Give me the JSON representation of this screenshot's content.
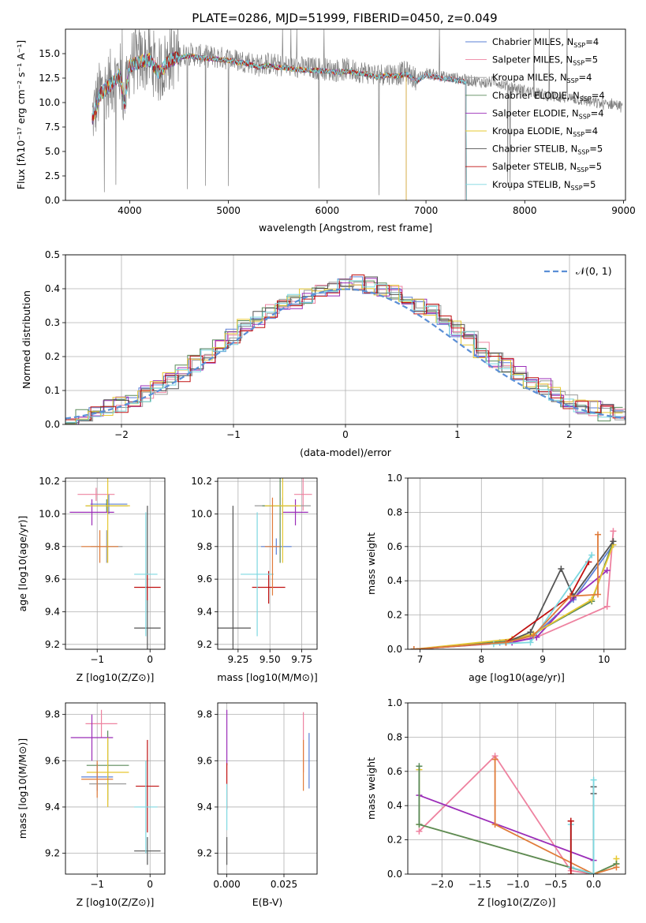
{
  "figure_title": "PLATE=0286, MJD=51999, FIBERID=0450, z=0.049",
  "colors": {
    "Chabrier MILES": "#5b7fd6",
    "Salpeter MILES": "#ee82a0",
    "Kroupa MILES": "#9a9a9a",
    "Chabrier ELODIE": "#5a8a5a",
    "Salpeter ELODIE": "#9b2db8",
    "Kroupa ELODIE": "#e6c832",
    "Chabrier STELIB": "#555555",
    "Salpeter STELIB": "#c01010",
    "Kroupa STELIB": "#7dd8e0",
    "gauss": "#5b8fd6",
    "orange": "#e07b39",
    "lime": "#c8e65a"
  },
  "chart_data": [
    {
      "id": "spectrum",
      "type": "line",
      "title": "PLATE=0286, MJD=51999, FIBERID=0450, z=0.049",
      "xlabel": "wavelength [Angstrom, rest frame]",
      "ylabel": "Flux [fλ10⁻¹⁷ erg cm⁻² s⁻¹ A⁻¹]",
      "xlim": [
        3350,
        9020
      ],
      "ylim": [
        0,
        17.5
      ],
      "xticks": [
        "4000",
        "5000",
        "6000",
        "7000",
        "8000",
        "9000"
      ],
      "yticks": [
        "0.0",
        "2.5",
        "5.0",
        "7.5",
        "10.0",
        "12.5",
        "15.0"
      ],
      "grid": false,
      "legend_position": "upper-right",
      "legend": [
        {
          "base": "Chabrier MILES, N",
          "sub": "SSP",
          "tail": "=4"
        },
        {
          "base": "Salpeter MILES, N",
          "sub": "SSP",
          "tail": "=5"
        },
        {
          "base": "Kroupa MILES, N",
          "sub": "SSP",
          "tail": "=4"
        },
        {
          "base": "Chabrier ELODIE, N",
          "sub": "SSP",
          "tail": "=4"
        },
        {
          "base": "Salpeter ELODIE, N",
          "sub": "SSP",
          "tail": "=4"
        },
        {
          "base": "Kroupa ELODIE, N",
          "sub": "SSP",
          "tail": "=4"
        },
        {
          "base": "Chabrier STELIB, N",
          "sub": "SSP",
          "tail": "=5"
        },
        {
          "base": "Salpeter STELIB, N",
          "sub": "SSP",
          "tail": "=5"
        },
        {
          "base": "Kroupa STELIB, N",
          "sub": "SSP",
          "tail": "=5"
        }
      ],
      "observed_curve": {
        "x": [
          3620,
          3700,
          3800,
          3900,
          3950,
          4000,
          4100,
          4200,
          4300,
          4400,
          4500,
          4600,
          4700,
          4800,
          4900,
          5000,
          5100,
          5200,
          5300,
          5400,
          5500,
          5600,
          5700,
          5800,
          5900,
          6000,
          6100,
          6200,
          6300,
          6400,
          6500,
          6600,
          6700,
          6800,
          6900,
          7000,
          7100,
          7200,
          7300,
          7400,
          7500,
          7600,
          7700,
          7800,
          7900,
          8000,
          8100,
          8200,
          8300,
          8400,
          8500,
          8600,
          8700,
          8800,
          8900,
          8990
        ],
        "y": [
          8.5,
          11.0,
          12.0,
          13.0,
          10.0,
          14.0,
          14.3,
          14.6,
          13.2,
          14.5,
          14.8,
          15.0,
          14.8,
          14.7,
          14.6,
          14.5,
          14.3,
          14.2,
          13.8,
          14.0,
          13.8,
          13.7,
          13.6,
          13.5,
          13.5,
          13.4,
          13.3,
          13.4,
          13.2,
          13.1,
          12.8,
          13.0,
          12.9,
          13.1,
          12.4,
          13.0,
          12.8,
          12.6,
          12.5,
          12.3,
          12.2,
          12.0,
          12.2,
          11.8,
          11.5,
          11.2,
          11.0,
          10.8,
          10.6,
          10.5,
          10.4,
          10.2,
          10.0,
          9.8,
          9.9,
          9.5
        ]
      },
      "model_cutoffs": {
        "STELIB": 7410,
        "ELODIE": 6800,
        "MILES": 7400
      }
    },
    {
      "id": "residuals",
      "type": "bar",
      "xlabel": "(data-model)/error",
      "ylabel": "Normed distribution",
      "xlim": [
        -2.5,
        2.5
      ],
      "ylim": [
        0,
        0.5
      ],
      "xticks": [
        "−2",
        "−1",
        "0",
        "1",
        "2"
      ],
      "yticks": [
        "0.0",
        "0.1",
        "0.2",
        "0.3",
        "0.4",
        "0.5"
      ],
      "grid": true,
      "legend_position": "upper-right",
      "legend_label": "𝒩(0, 1)",
      "bin_width": 0.111,
      "base_hist": [
        0.02,
        0.03,
        0.04,
        0.05,
        0.06,
        0.075,
        0.09,
        0.11,
        0.13,
        0.15,
        0.18,
        0.2,
        0.23,
        0.26,
        0.29,
        0.31,
        0.33,
        0.35,
        0.36,
        0.38,
        0.39,
        0.4,
        0.41,
        0.42,
        0.41,
        0.4,
        0.39,
        0.37,
        0.35,
        0.33,
        0.31,
        0.28,
        0.25,
        0.22,
        0.19,
        0.17,
        0.15,
        0.13,
        0.11,
        0.09,
        0.07,
        0.055,
        0.045,
        0.035,
        0.03
      ]
    },
    {
      "id": "age_vs_Z",
      "type": "scatter",
      "xlabel": "Z [log10(Z/Z⊙)]",
      "ylabel": "age  [log10(age/yr)]",
      "xlim": [
        -1.6,
        0.28
      ],
      "ylim": [
        9.17,
        10.22
      ],
      "xticks": [
        "−1",
        "0"
      ],
      "yticks": [
        "9.2",
        "9.4",
        "9.6",
        "9.8",
        "10.0",
        "10.2"
      ],
      "grid": true,
      "points": [
        {
          "model": "Chabrier MILES",
          "x": -0.78,
          "y": 10.06,
          "xerr": 0.35,
          "yerr": 0.06
        },
        {
          "model": "Salpeter MILES",
          "x": -1.02,
          "y": 10.12,
          "xerr": 0.35,
          "yerr": 0.04
        },
        {
          "model": "Kroupa MILES",
          "x": -0.82,
          "y": 9.8,
          "xerr": 0.3,
          "yerr": 0.1
        },
        {
          "model": "Chabrier ELODIE",
          "x": -0.82,
          "y": 10.05,
          "xerr": 0.4,
          "yerr": 0.04
        },
        {
          "model": "Salpeter ELODIE",
          "x": -1.1,
          "y": 10.01,
          "xerr": 0.42,
          "yerr": 0.08
        },
        {
          "model": "Kroupa ELODIE",
          "x": -0.8,
          "y": 10.05,
          "xerr": 0.42,
          "yerr": 0.35
        },
        {
          "model": "Chabrier STELIB",
          "x": -0.05,
          "y": 9.3,
          "xerr": 0.25,
          "yerr": 0.75
        },
        {
          "model": "Salpeter STELIB",
          "x": -0.05,
          "y": 9.55,
          "xerr": 0.25,
          "yerr": 0.08
        },
        {
          "model": "Kroupa STELIB",
          "x": -0.08,
          "y": 9.63,
          "xerr": 0.22,
          "yerr": 0.38
        },
        {
          "model": "orange",
          "x": -0.95,
          "y": 9.8,
          "xerr": 0.35,
          "yerr": 0.1
        }
      ]
    },
    {
      "id": "age_vs_mass",
      "type": "scatter",
      "xlabel": "mass [log10(M/M⊙)]",
      "ylabel": "",
      "xlim": [
        9.09,
        9.87
      ],
      "ylim": [
        9.17,
        10.22
      ],
      "xticks": [
        "9.25",
        "9.50",
        "9.75"
      ],
      "yticks": [
        "9.2",
        "9.4",
        "9.6",
        "9.8",
        "10.0",
        "10.2"
      ],
      "grid": true,
      "points": [
        {
          "model": "Chabrier MILES",
          "x": 9.55,
          "y": 9.8,
          "xerr": 0.12,
          "yerr": 0.05
        },
        {
          "model": "Salpeter MILES",
          "x": 9.76,
          "y": 10.12,
          "xerr": 0.07,
          "yerr": 0.1
        },
        {
          "model": "Kroupa MILES",
          "x": 9.6,
          "y": 10.05,
          "xerr": 0.22,
          "yerr": 0.05
        },
        {
          "model": "Chabrier ELODIE",
          "x": 9.58,
          "y": 10.05,
          "xerr": 0.14,
          "yerr": 0.35
        },
        {
          "model": "Salpeter ELODIE",
          "x": 9.7,
          "y": 10.01,
          "xerr": 0.1,
          "yerr": 0.08
        },
        {
          "model": "Kroupa ELODIE",
          "x": 9.6,
          "y": 10.05,
          "xerr": 0.14,
          "yerr": 0.35
        },
        {
          "model": "Chabrier STELIB",
          "x": 9.21,
          "y": 9.3,
          "xerr": 0.14,
          "yerr": 0.75
        },
        {
          "model": "Salpeter STELIB",
          "x": 9.49,
          "y": 9.55,
          "xerr": 0.13,
          "yerr": 0.1
        },
        {
          "model": "Kroupa STELIB",
          "x": 9.4,
          "y": 9.63,
          "xerr": 0.13,
          "yerr": 0.38
        },
        {
          "model": "orange",
          "x": 9.52,
          "y": 9.8,
          "xerr": 0.06,
          "yerr": 0.3
        }
      ]
    },
    {
      "id": "weight_vs_age",
      "type": "line",
      "xlabel": "age  [log10(age/yr)]",
      "ylabel": "mass weight",
      "xlim": [
        6.8,
        10.35
      ],
      "ylim": [
        0,
        1.0
      ],
      "xticks": [
        "7",
        "8",
        "9",
        "10"
      ],
      "yticks": [
        "0.0",
        "0.2",
        "0.4",
        "0.6",
        "0.8",
        "1.0"
      ],
      "grid": true,
      "series": [
        {
          "model": "Chabrier MILES",
          "x": [
            8.3,
            8.8,
            9.5,
            10.15
          ],
          "y": [
            0.04,
            0.06,
            0.29,
            0.61
          ]
        },
        {
          "model": "Salpeter MILES",
          "x": [
            6.9,
            8.4,
            8.9,
            10.05,
            10.15
          ],
          "y": [
            0.0,
            0.04,
            0.07,
            0.25,
            0.69
          ]
        },
        {
          "model": "Chabrier ELODIE",
          "x": [
            6.9,
            8.5,
            8.85,
            9.8,
            10.15
          ],
          "y": [
            0.0,
            0.05,
            0.09,
            0.28,
            0.63
          ]
        },
        {
          "model": "Salpeter ELODIE",
          "x": [
            6.9,
            8.5,
            8.9,
            9.5,
            10.05
          ],
          "y": [
            0.0,
            0.04,
            0.07,
            0.3,
            0.46
          ]
        },
        {
          "model": "Kroupa ELODIE",
          "x": [
            6.9,
            8.5,
            8.85,
            9.8,
            10.15
          ],
          "y": [
            0.0,
            0.06,
            0.09,
            0.29,
            0.61
          ]
        },
        {
          "model": "Chabrier STELIB",
          "x": [
            6.9,
            8.4,
            8.8,
            9.3,
            9.5,
            10.15
          ],
          "y": [
            0.0,
            0.04,
            0.1,
            0.47,
            0.31,
            0.63
          ]
        },
        {
          "model": "Salpeter STELIB",
          "x": [
            8.4,
            9.45,
            9.75
          ],
          "y": [
            0.04,
            0.31,
            0.51
          ]
        },
        {
          "model": "Kroupa STELIB",
          "x": [
            8.2,
            8.8,
            9.8
          ],
          "y": [
            0.03,
            0.04,
            0.55
          ]
        },
        {
          "model": "orange",
          "x": [
            6.9,
            8.4,
            8.85,
            9.45,
            9.9,
            9.9
          ],
          "y": [
            0.0,
            0.04,
            0.08,
            0.31,
            0.32,
            0.67
          ]
        }
      ]
    },
    {
      "id": "mass_vs_Z",
      "type": "scatter",
      "xlabel": "Z [log10(Z/Z⊙)]",
      "ylabel": "mass [log10(M/M⊙)]",
      "xlim": [
        -1.6,
        0.28
      ],
      "ylim": [
        9.11,
        9.85
      ],
      "xticks": [
        "−1",
        "0"
      ],
      "yticks": [
        "9.2",
        "9.4",
        "9.6",
        "9.8"
      ],
      "grid": true,
      "points": [
        {
          "model": "Chabrier MILES",
          "x": -1.0,
          "y": 9.53,
          "xerr": 0.3,
          "yerr": 0.06
        },
        {
          "model": "Salpeter MILES",
          "x": -0.92,
          "y": 9.76,
          "xerr": 0.3,
          "yerr": 0.06
        },
        {
          "model": "Kroupa MILES",
          "x": -0.8,
          "y": 9.5,
          "xerr": 0.35,
          "yerr": 0.1
        },
        {
          "model": "Chabrier ELODIE",
          "x": -0.8,
          "y": 9.58,
          "xerr": 0.4,
          "yerr": 0.15
        },
        {
          "model": "Salpeter ELODIE",
          "x": -1.1,
          "y": 9.7,
          "xerr": 0.4,
          "yerr": 0.1
        },
        {
          "model": "Kroupa ELODIE",
          "x": -0.8,
          "y": 9.55,
          "xerr": 0.4,
          "yerr": 0.15
        },
        {
          "model": "Chabrier STELIB",
          "x": -0.05,
          "y": 9.21,
          "xerr": 0.25,
          "yerr": 0.06
        },
        {
          "model": "Salpeter STELIB",
          "x": -0.05,
          "y": 9.49,
          "xerr": 0.22,
          "yerr": 0.2
        },
        {
          "model": "Kroupa STELIB",
          "x": -0.08,
          "y": 9.4,
          "xerr": 0.22,
          "yerr": 0.2
        },
        {
          "model": "orange",
          "x": -1.0,
          "y": 9.52,
          "xerr": 0.3,
          "yerr": 0.08
        }
      ]
    },
    {
      "id": "mass_vs_EBV",
      "type": "scatter",
      "xlabel": "E(B-V)",
      "ylabel": "",
      "xlim": [
        -0.004,
        0.0395
      ],
      "ylim": [
        9.11,
        9.85
      ],
      "xticks": [
        "0.000",
        "0.025"
      ],
      "yticks": [
        "9.2",
        "9.4",
        "9.6",
        "9.8"
      ],
      "grid": true,
      "points": [
        {
          "model": "Chabrier MILES",
          "x": 0.036,
          "y": 9.6,
          "yerr": 0.12
        },
        {
          "model": "Salpeter MILES",
          "x": 0.0335,
          "y": 9.68,
          "yerr": 0.13
        },
        {
          "model": "orange",
          "x": 0.0335,
          "y": 9.58,
          "yerr": 0.11
        },
        {
          "model": "Salpeter ELODIE",
          "x": 0.0,
          "y": 9.7,
          "yerr": 0.12
        },
        {
          "model": "Chabrier STELIB",
          "x": 0.0,
          "y": 9.21,
          "yerr": 0.06
        },
        {
          "model": "Salpeter STELIB",
          "x": 0.0,
          "y": 9.49,
          "yerr": 0.1
        },
        {
          "model": "Kroupa STELIB",
          "x": 0.0,
          "y": 9.4,
          "yerr": 0.1
        }
      ]
    },
    {
      "id": "weight_vs_Z",
      "type": "line",
      "xlabel": "Z [log10(Z/Z⊙)]",
      "ylabel": "mass weight",
      "xlim": [
        -2.45,
        0.42
      ],
      "ylim": [
        0,
        1.0
      ],
      "xticks": [
        "−2.0",
        "−1.5",
        "−1.0",
        "−0.5",
        "0.0"
      ],
      "yticks": [
        "0.0",
        "0.2",
        "0.4",
        "0.6",
        "0.8",
        "1.0"
      ],
      "grid": true,
      "series": [
        {
          "model": "Salpeter MILES",
          "x": [
            -2.3,
            -1.3,
            -0.3,
            0.0
          ],
          "y": [
            0.25,
            0.69,
            0.02,
            0.0
          ]
        },
        {
          "model": "Salpeter ELODIE",
          "x": [
            -2.3,
            0.0
          ],
          "y": [
            0.46,
            0.08
          ]
        },
        {
          "model": "Kroupa ELODIE",
          "x": [
            -2.3,
            -2.3,
            0.0,
            0.3,
            0.3
          ],
          "y": [
            0.61,
            0.29,
            0.0,
            0.06,
            0.09
          ]
        },
        {
          "model": "Chabrier ELODIE",
          "x": [
            -2.3,
            -2.3,
            0.0,
            0.3
          ],
          "y": [
            0.63,
            0.29,
            0.0,
            0.06
          ]
        },
        {
          "model": "orange",
          "x": [
            -1.3,
            -1.3,
            0.0,
            0.3
          ],
          "y": [
            0.67,
            0.29,
            0.0,
            0.04
          ]
        },
        {
          "model": "Chabrier STELIB",
          "x": [
            -0.3,
            -0.3,
            0.0,
            0.0,
            0.0
          ],
          "y": [
            0.31,
            0.04,
            0.0,
            0.51,
            0.47
          ]
        },
        {
          "model": "Kroupa STELIB",
          "x": [
            -0.3,
            -0.3,
            0.0,
            0.0
          ],
          "y": [
            0.29,
            0.04,
            0.0,
            0.55
          ]
        },
        {
          "model": "Salpeter STELIB",
          "x": [
            -0.3,
            -0.3
          ],
          "y": [
            0.31,
            0.0
          ]
        }
      ]
    }
  ]
}
